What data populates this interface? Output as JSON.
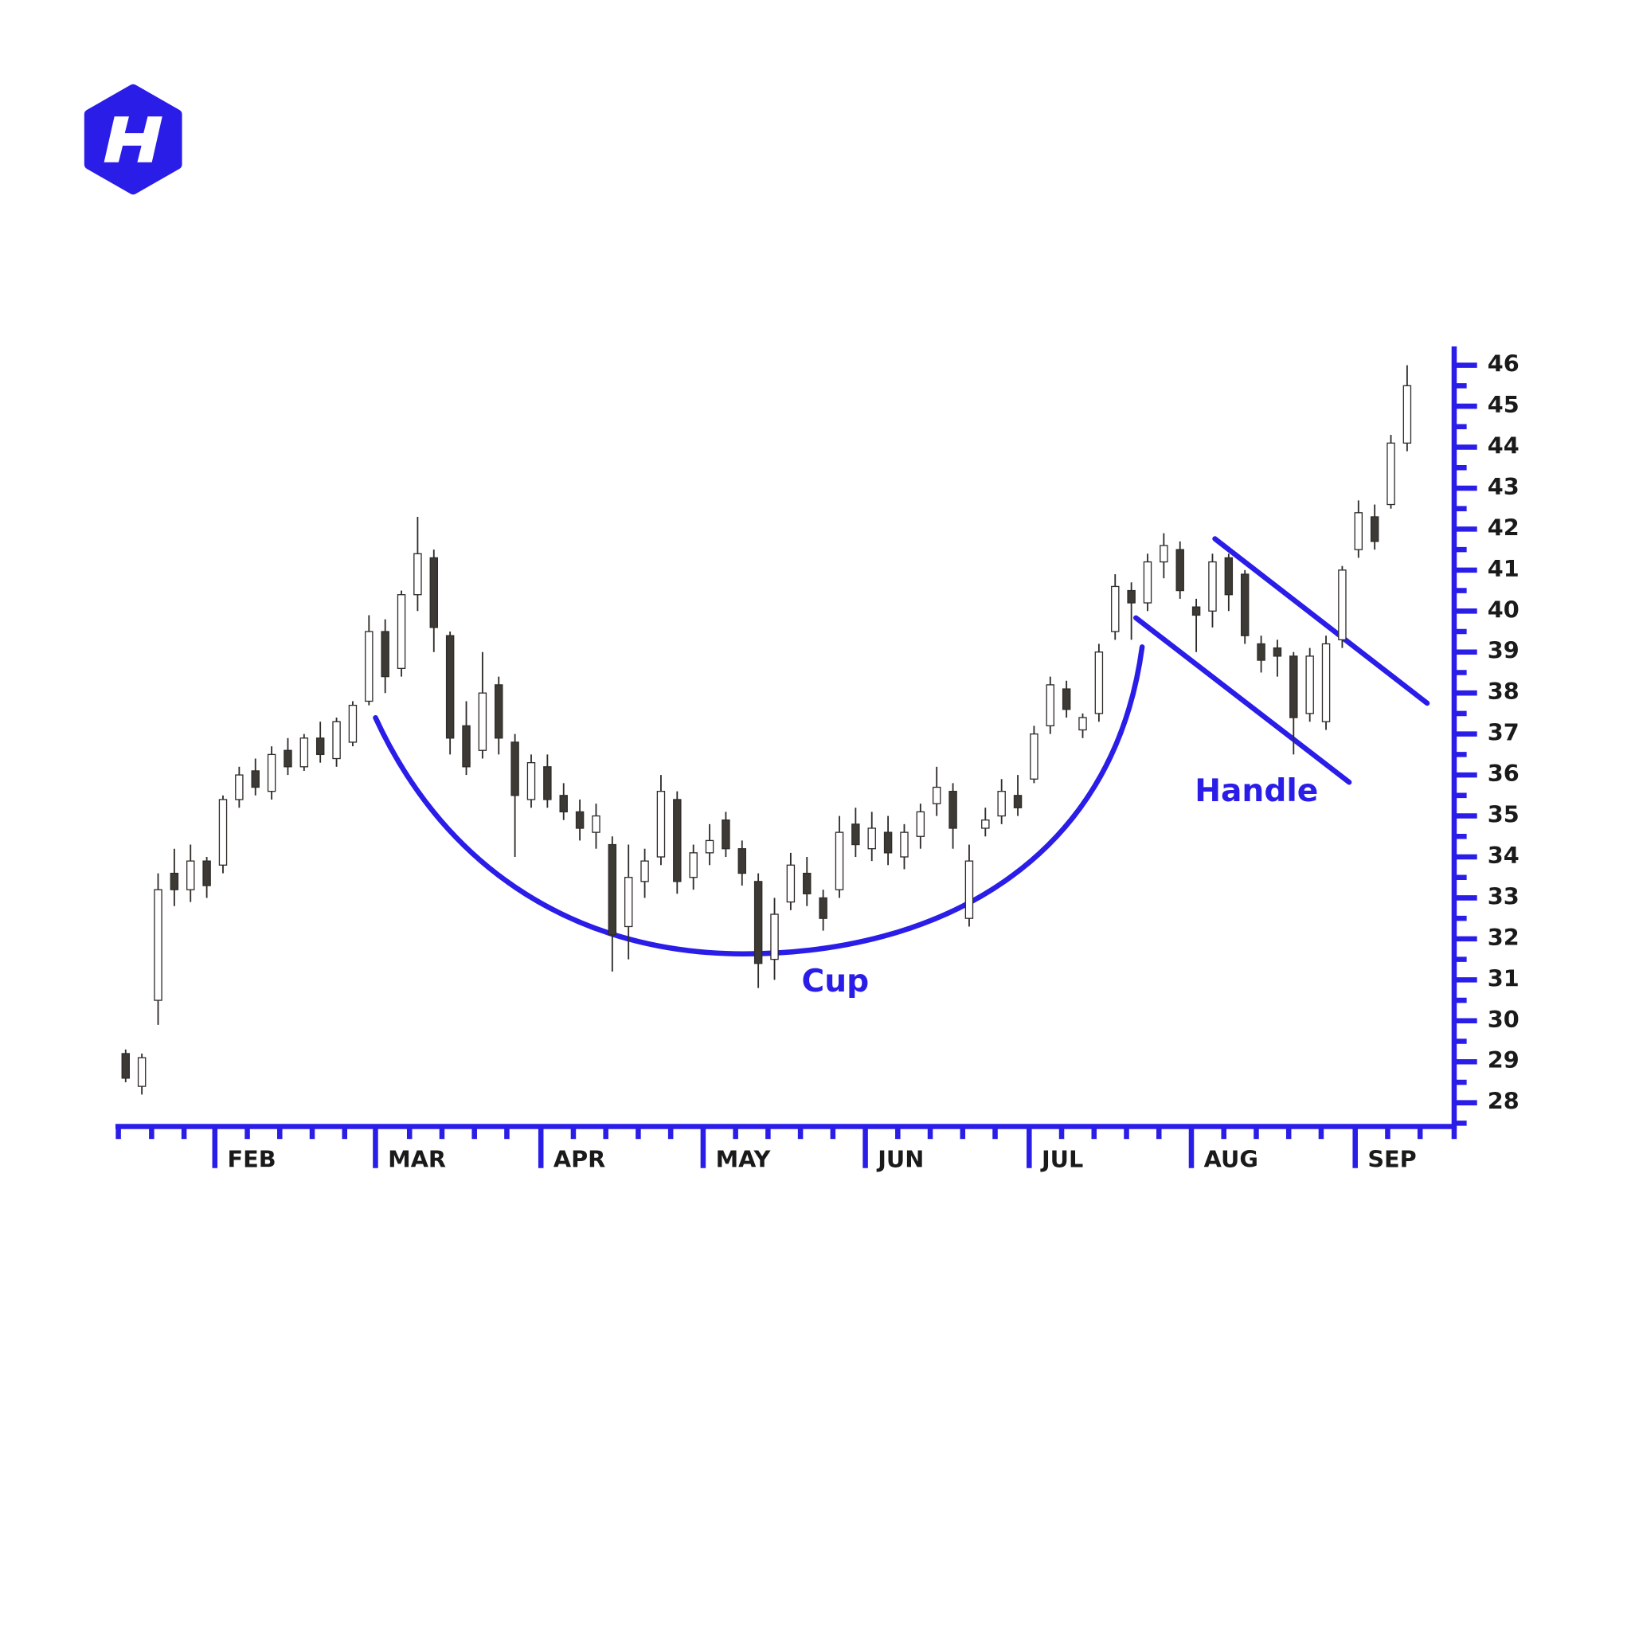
{
  "chart_data": {
    "type": "candlestick",
    "color_up": "#ffffff",
    "color_down": "#3d3a36",
    "annotation_color": "#2b1de8",
    "annotations": [
      "Cup",
      "Handle"
    ],
    "xlim": [
      -0.5,
      81.9
    ],
    "ylim": [
      27.42,
      46.46
    ],
    "yticks": [
      28,
      29,
      30,
      31,
      32,
      33,
      34,
      35,
      36,
      37,
      38,
      39,
      40,
      41,
      42,
      43,
      44,
      45,
      46
    ],
    "yminorticks": [
      27.5,
      28.5,
      29.5,
      30.5,
      31.5,
      32.5,
      33.5,
      34.5,
      35.5,
      36.5,
      37.5,
      38.5,
      39.5,
      40.5,
      41.5,
      42.5,
      43.5,
      44.5,
      45.5
    ],
    "xticks": [
      {
        "value": 5.5,
        "label": "FEB"
      },
      {
        "value": 15.4,
        "label": "MAR"
      },
      {
        "value": 25.6,
        "label": "APR"
      },
      {
        "value": 35.6,
        "label": "MAY"
      },
      {
        "value": 45.6,
        "label": "JUN"
      },
      {
        "value": 55.7,
        "label": "JUL"
      },
      {
        "value": 65.7,
        "label": "AUG"
      },
      {
        "value": 75.8,
        "label": "SEP"
      }
    ],
    "xminorticks": [
      -0.45,
      1.6,
      3.6,
      7.5,
      9.5,
      11.5,
      13.5,
      17.5,
      19.5,
      21.5,
      23.5,
      27.6,
      29.6,
      31.6,
      33.6,
      37.6,
      39.6,
      41.6,
      43.6,
      47.6,
      49.6,
      51.6,
      53.6,
      57.7,
      59.7,
      61.7,
      63.7,
      67.7,
      69.7,
      71.7,
      73.7,
      77.8,
      79.8,
      81.9
    ],
    "open": [
      29.2,
      28.4,
      30.5,
      33.6,
      33.2,
      33.9,
      33.8,
      35.4,
      36.1,
      35.6,
      36.6,
      36.2,
      36.9,
      36.4,
      36.8,
      37.8,
      39.5,
      38.6,
      40.4,
      41.3,
      39.4,
      37.2,
      36.6,
      38.2,
      36.8,
      35.4,
      36.2,
      35.5,
      35.1,
      34.6,
      34.3,
      32.3,
      33.4,
      34.0,
      35.4,
      33.5,
      34.1,
      34.9,
      34.2,
      33.4,
      31.5,
      32.9,
      33.6,
      33.0,
      33.2,
      34.8,
      34.2,
      34.6,
      34.0,
      34.5,
      35.3,
      35.6,
      32.5,
      34.7,
      35.0,
      35.5,
      35.9,
      37.2,
      38.1,
      37.1,
      37.5,
      39.5,
      40.5,
      40.2,
      41.2,
      41.5,
      40.1,
      40.0,
      41.3,
      40.9,
      39.2,
      39.1,
      38.9,
      37.5,
      37.3,
      39.3,
      41.5,
      42.3,
      42.6,
      44.1
    ],
    "high": [
      29.3,
      29.2,
      33.6,
      34.2,
      34.3,
      34.0,
      35.5,
      36.2,
      36.4,
      36.7,
      36.9,
      37.0,
      37.3,
      37.4,
      37.8,
      39.9,
      39.8,
      40.5,
      42.3,
      41.5,
      39.5,
      37.8,
      39.0,
      38.4,
      37.0,
      36.5,
      36.5,
      35.8,
      35.4,
      35.3,
      34.5,
      34.3,
      34.2,
      36.0,
      35.6,
      34.3,
      34.8,
      35.1,
      34.4,
      33.6,
      33.0,
      34.1,
      34.0,
      33.2,
      35.0,
      35.2,
      35.1,
      35.0,
      34.8,
      35.3,
      36.2,
      35.8,
      34.3,
      35.2,
      35.9,
      36.0,
      37.2,
      38.4,
      38.3,
      37.5,
      39.2,
      40.9,
      40.7,
      41.4,
      41.9,
      41.7,
      40.3,
      41.4,
      41.4,
      41.0,
      39.4,
      39.3,
      39.0,
      39.1,
      39.4,
      41.1,
      42.7,
      42.6,
      44.3,
      46.0
    ],
    "low": [
      28.5,
      28.2,
      29.9,
      32.8,
      32.9,
      33.0,
      33.6,
      35.2,
      35.5,
      35.4,
      36.0,
      36.1,
      36.3,
      36.2,
      36.7,
      37.7,
      38.0,
      38.4,
      40.0,
      39.0,
      36.5,
      36.0,
      36.4,
      36.5,
      34.0,
      35.2,
      35.2,
      34.9,
      34.4,
      34.2,
      31.2,
      31.5,
      33.0,
      33.8,
      33.1,
      33.2,
      33.8,
      34.0,
      33.3,
      30.8,
      31.0,
      32.7,
      32.8,
      32.2,
      33.0,
      34.0,
      33.9,
      33.8,
      33.7,
      34.2,
      35.0,
      34.2,
      32.3,
      34.5,
      34.8,
      35.0,
      35.8,
      37.0,
      37.4,
      36.9,
      37.3,
      39.3,
      39.3,
      40.0,
      40.8,
      40.3,
      39.0,
      39.6,
      40.0,
      39.2,
      38.5,
      38.4,
      36.5,
      37.3,
      37.1,
      39.1,
      41.3,
      41.5,
      42.5,
      43.9
    ],
    "close": [
      28.6,
      29.1,
      33.2,
      33.2,
      33.9,
      33.3,
      35.4,
      36.0,
      35.7,
      36.5,
      36.2,
      36.9,
      36.5,
      37.3,
      37.7,
      39.5,
      38.4,
      40.4,
      41.4,
      39.6,
      36.9,
      36.2,
      38.0,
      36.9,
      35.5,
      36.3,
      35.4,
      35.1,
      34.7,
      35.0,
      32.1,
      33.5,
      33.9,
      35.6,
      33.4,
      34.1,
      34.4,
      34.2,
      33.6,
      31.4,
      32.6,
      33.8,
      33.1,
      32.5,
      34.6,
      34.3,
      34.7,
      34.1,
      34.6,
      35.1,
      35.7,
      34.7,
      33.9,
      34.9,
      35.6,
      35.2,
      37.0,
      38.2,
      37.6,
      37.4,
      39.0,
      40.6,
      40.2,
      41.2,
      41.6,
      40.5,
      39.9,
      41.2,
      40.4,
      39.4,
      38.8,
      38.9,
      37.4,
      38.9,
      39.2,
      41.0,
      42.4,
      41.7,
      44.1,
      45.5
    ]
  }
}
